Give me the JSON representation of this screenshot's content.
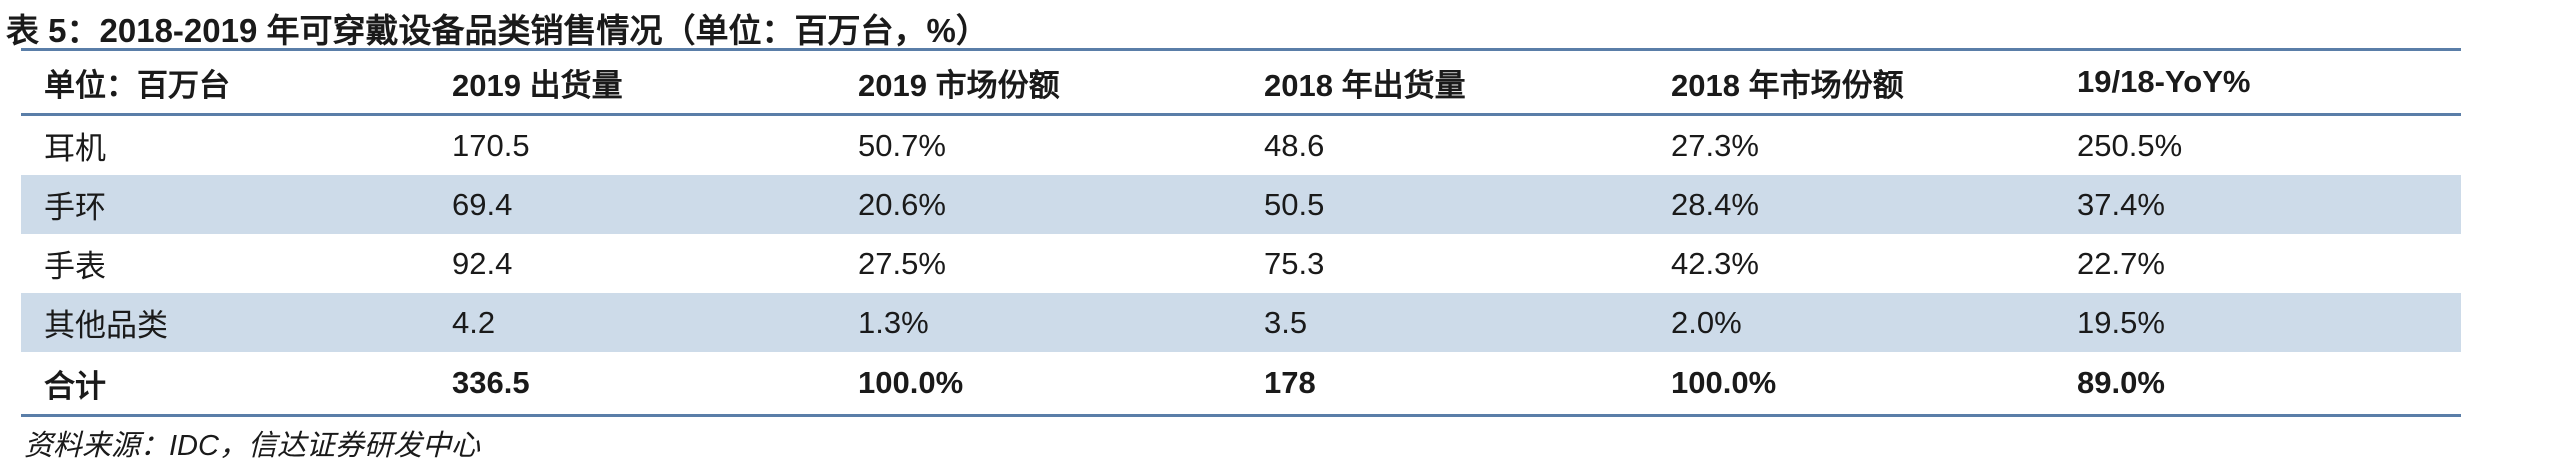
{
  "title": "表 5：2018-2019 年可穿戴设备品类销售情况（单位：百万台，%）",
  "table": {
    "header": [
      "单位：百万台",
      "2019 出货量",
      "2019 市场份额",
      "2018 年出货量",
      "2018 年市场份额",
      "19/18-YoY%"
    ],
    "rows": [
      [
        "耳机",
        "170.5",
        "50.7%",
        "48.6",
        "27.3%",
        "250.5%"
      ],
      [
        "手环",
        "69.4",
        "20.6%",
        "50.5",
        "28.4%",
        "37.4%"
      ],
      [
        "手表",
        "92.4",
        "27.5%",
        "75.3",
        "42.3%",
        "22.7%"
      ],
      [
        "其他品类",
        "4.2",
        "1.3%",
        "3.5",
        "2.0%",
        "19.5%"
      ],
      [
        "合计",
        "336.5",
        "100.0%",
        "178",
        "100.0%",
        "89.0%"
      ]
    ]
  },
  "source": "资料来源：IDC，信达证券研发中心"
}
